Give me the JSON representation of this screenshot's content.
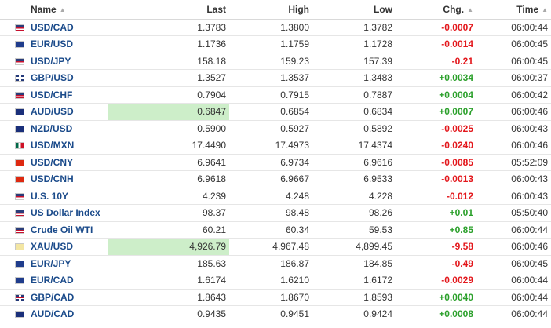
{
  "table": {
    "headers": {
      "name": "Name",
      "last": "Last",
      "high": "High",
      "low": "Low",
      "chg": "Chg.",
      "time": "Time"
    },
    "rows": [
      {
        "flag": "us-flag",
        "name": "USD/CAD",
        "last": "1.3783",
        "high": "1.3800",
        "low": "1.3782",
        "chg": "-0.0007",
        "time": "06:00:44",
        "dir": "down",
        "hl": false
      },
      {
        "flag": "eu-flag",
        "name": "EUR/USD",
        "last": "1.1736",
        "high": "1.1759",
        "low": "1.1728",
        "chg": "-0.0014",
        "time": "06:00:45",
        "dir": "down",
        "hl": false
      },
      {
        "flag": "us-flag",
        "name": "USD/JPY",
        "last": "158.18",
        "high": "159.23",
        "low": "157.39",
        "chg": "-0.21",
        "time": "06:00:45",
        "dir": "down",
        "hl": false
      },
      {
        "flag": "gb-flag",
        "name": "GBP/USD",
        "last": "1.3527",
        "high": "1.3537",
        "low": "1.3483",
        "chg": "+0.0034",
        "time": "06:00:37",
        "dir": "up",
        "hl": false
      },
      {
        "flag": "us-flag",
        "name": "USD/CHF",
        "last": "0.7904",
        "high": "0.7915",
        "low": "0.7887",
        "chg": "+0.0004",
        "time": "06:00:42",
        "dir": "up",
        "hl": false
      },
      {
        "flag": "au-flag",
        "name": "AUD/USD",
        "last": "0.6847",
        "high": "0.6854",
        "low": "0.6834",
        "chg": "+0.0007",
        "time": "06:00:46",
        "dir": "up",
        "hl": true
      },
      {
        "flag": "nz-flag",
        "name": "NZD/USD",
        "last": "0.5900",
        "high": "0.5927",
        "low": "0.5892",
        "chg": "-0.0025",
        "time": "06:00:43",
        "dir": "down",
        "hl": false
      },
      {
        "flag": "mx-flag",
        "name": "USD/MXN",
        "last": "17.4490",
        "high": "17.4973",
        "low": "17.4374",
        "chg": "-0.0240",
        "time": "06:00:46",
        "dir": "down",
        "hl": false
      },
      {
        "flag": "cn-flag",
        "name": "USD/CNY",
        "last": "6.9641",
        "high": "6.9734",
        "low": "6.9616",
        "chg": "-0.0085",
        "time": "05:52:09",
        "dir": "down",
        "hl": false
      },
      {
        "flag": "cn-flag",
        "name": "USD/CNH",
        "last": "6.9618",
        "high": "6.9667",
        "low": "6.9533",
        "chg": "-0.0013",
        "time": "06:00:43",
        "dir": "down",
        "hl": false
      },
      {
        "flag": "us-flag",
        "name": "U.S. 10Y",
        "last": "4.239",
        "high": "4.248",
        "low": "4.228",
        "chg": "-0.012",
        "time": "06:00:43",
        "dir": "down",
        "hl": false
      },
      {
        "flag": "us-flag",
        "name": "US Dollar Index",
        "last": "98.37",
        "high": "98.48",
        "low": "98.26",
        "chg": "+0.01",
        "time": "05:50:40",
        "dir": "up",
        "hl": false
      },
      {
        "flag": "us-flag",
        "name": "Crude Oil WTI",
        "last": "60.21",
        "high": "60.34",
        "low": "59.53",
        "chg": "+0.85",
        "time": "06:00:44",
        "dir": "up",
        "hl": false
      },
      {
        "flag": "gold-icon",
        "name": "XAU/USD",
        "last": "4,926.79",
        "high": "4,967.48",
        "low": "4,899.45",
        "chg": "-9.58",
        "time": "06:00:46",
        "dir": "down",
        "hl": true
      },
      {
        "flag": "eu-flag",
        "name": "EUR/JPY",
        "last": "185.63",
        "high": "186.87",
        "low": "184.85",
        "chg": "-0.49",
        "time": "06:00:45",
        "dir": "down",
        "hl": false
      },
      {
        "flag": "eu-flag",
        "name": "EUR/CAD",
        "last": "1.6174",
        "high": "1.6210",
        "low": "1.6172",
        "chg": "-0.0029",
        "time": "06:00:44",
        "dir": "down",
        "hl": false
      },
      {
        "flag": "gb-flag",
        "name": "GBP/CAD",
        "last": "1.8643",
        "high": "1.8670",
        "low": "1.8593",
        "chg": "+0.0040",
        "time": "06:00:44",
        "dir": "up",
        "hl": false
      },
      {
        "flag": "au-flag",
        "name": "AUD/CAD",
        "last": "0.9435",
        "high": "0.9451",
        "low": "0.9424",
        "chg": "+0.0008",
        "time": "06:00:44",
        "dir": "up",
        "hl": false
      }
    ]
  },
  "colors": {
    "up": "#2ba02b",
    "down": "#e3171c",
    "highlight": "#cdeec9",
    "name_link": "#1a4a8a"
  },
  "sort_icon": "sort-arrows-icon"
}
